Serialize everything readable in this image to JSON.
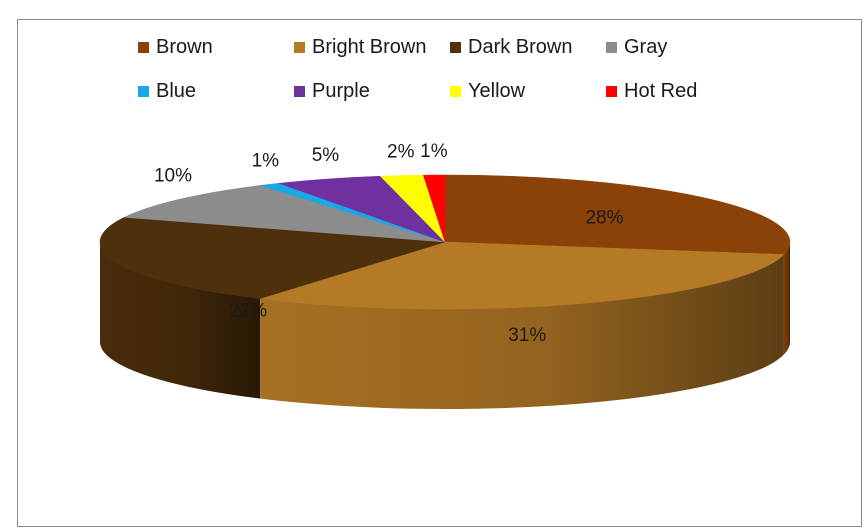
{
  "chart_data": {
    "type": "pie",
    "title": "",
    "categories": [
      "Brown",
      "Bright Brown",
      "Dark Brown",
      "Gray",
      "Blue",
      "Purple",
      "Yellow",
      "Hot Red"
    ],
    "values": [
      28,
      31,
      22,
      10,
      1,
      5,
      2,
      1
    ],
    "labels": [
      "28%",
      "31%",
      "22%",
      "10%",
      "1%",
      "5%",
      "2%",
      "1%"
    ],
    "colors": [
      "#8b4208",
      "#b57a26",
      "#4f300c",
      "#8c8c8c",
      "#1aa7e6",
      "#7030a0",
      "#ffff00",
      "#ff0000"
    ],
    "style": "3d",
    "legend_position": "top"
  }
}
